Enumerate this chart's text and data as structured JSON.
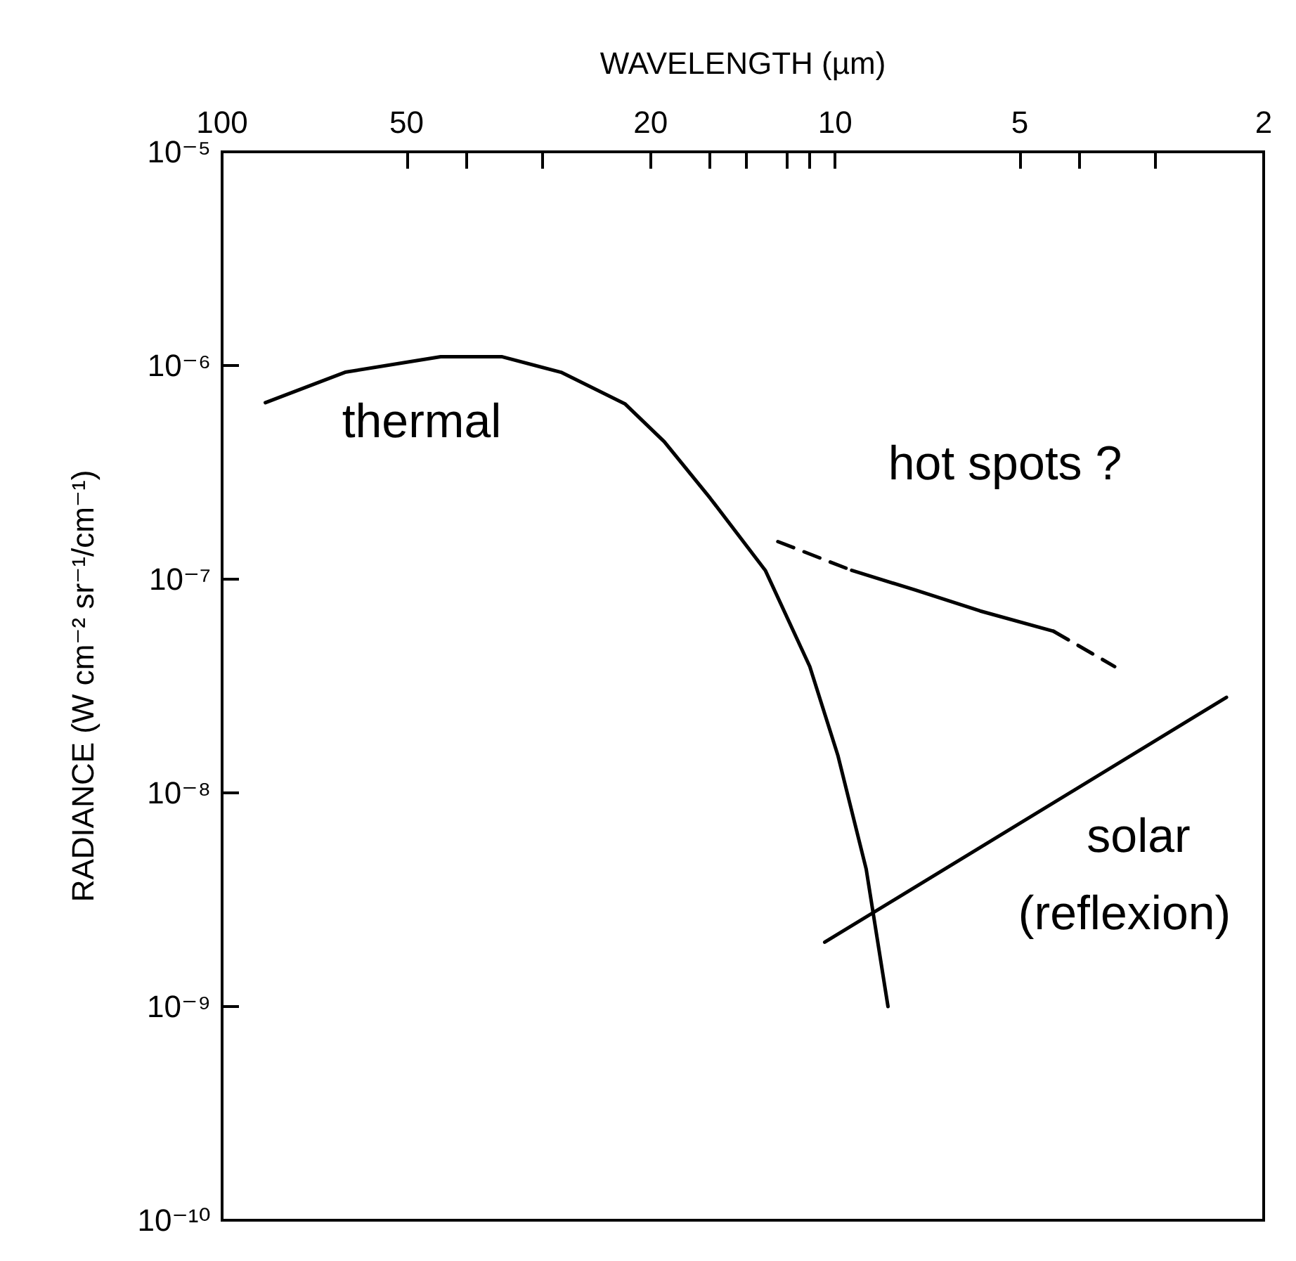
{
  "chart_data": {
    "type": "line",
    "xlabel": "WAVELENGTH (µm)",
    "ylabel": "RADIANCE (W cm⁻² sr⁻¹/cm⁻¹)",
    "log": "xy",
    "xlim": [
      100,
      2
    ],
    "xticks": [
      100,
      {
        "value": 40,
        "label": null
      },
      50,
      {
        "value": 30,
        "label": null
      },
      20,
      {
        "value": 16,
        "label": null
      },
      {
        "value": 14,
        "label": null
      },
      {
        "value": 12,
        "label": null
      },
      {
        "value": 11,
        "label": null
      },
      10,
      5,
      {
        "value": 4,
        "label": null
      },
      {
        "value": 3,
        "label": null
      },
      2
    ],
    "ylim": [
      1e-10,
      1e-05
    ],
    "yticks": [
      {
        "value": 1e-10,
        "label": "10⁻¹⁰"
      },
      {
        "value": 1e-09,
        "label": "10⁻⁹"
      },
      {
        "value": 1e-08,
        "label": "10⁻⁸"
      },
      {
        "value": 1e-07,
        "label": "10⁻⁷"
      },
      {
        "value": 1e-06,
        "label": "10⁻⁶"
      },
      {
        "value": 1e-05,
        "label": "10⁻⁵"
      }
    ],
    "grid": false,
    "series": [
      {
        "color": "#000000",
        "line_style": "solid",
        "x": [
          85,
          63,
          44,
          35,
          28,
          22,
          19,
          16,
          13,
          11,
          9.9,
          8.9,
          8.2
        ],
        "values": [
          6.7e-07,
          9.3e-07,
          1.1e-06,
          1.1e-06,
          9.3e-07,
          6.6e-07,
          4.4e-07,
          2.4e-07,
          1.1e-07,
          3.9e-08,
          1.5e-08,
          4.4e-09,
          1e-09
        ]
      },
      {
        "color": "#000000",
        "line_style": "dashed",
        "x": [
          12.4,
          9.4
        ],
        "values": [
          1.5e-07,
          1.1e-07
        ]
      },
      {
        "color": "#000000",
        "line_style": "solid",
        "x": [
          9.4,
          7.4,
          5.8,
          4.4
        ],
        "values": [
          1.1e-07,
          8.9e-08,
          7.1e-08,
          5.7e-08
        ]
      },
      {
        "color": "#000000",
        "line_style": "dashed",
        "x": [
          4.4,
          3.5
        ],
        "values": [
          5.7e-08,
          3.9e-08
        ]
      },
      {
        "color": "#000000",
        "line_style": "solid",
        "x": [
          10.4,
          2.3
        ],
        "values": [
          2e-09,
          2.8e-08
        ]
      }
    ],
    "annotations": [
      "thermal",
      "hot spots ?",
      "solar",
      "(reflexion)"
    ]
  }
}
